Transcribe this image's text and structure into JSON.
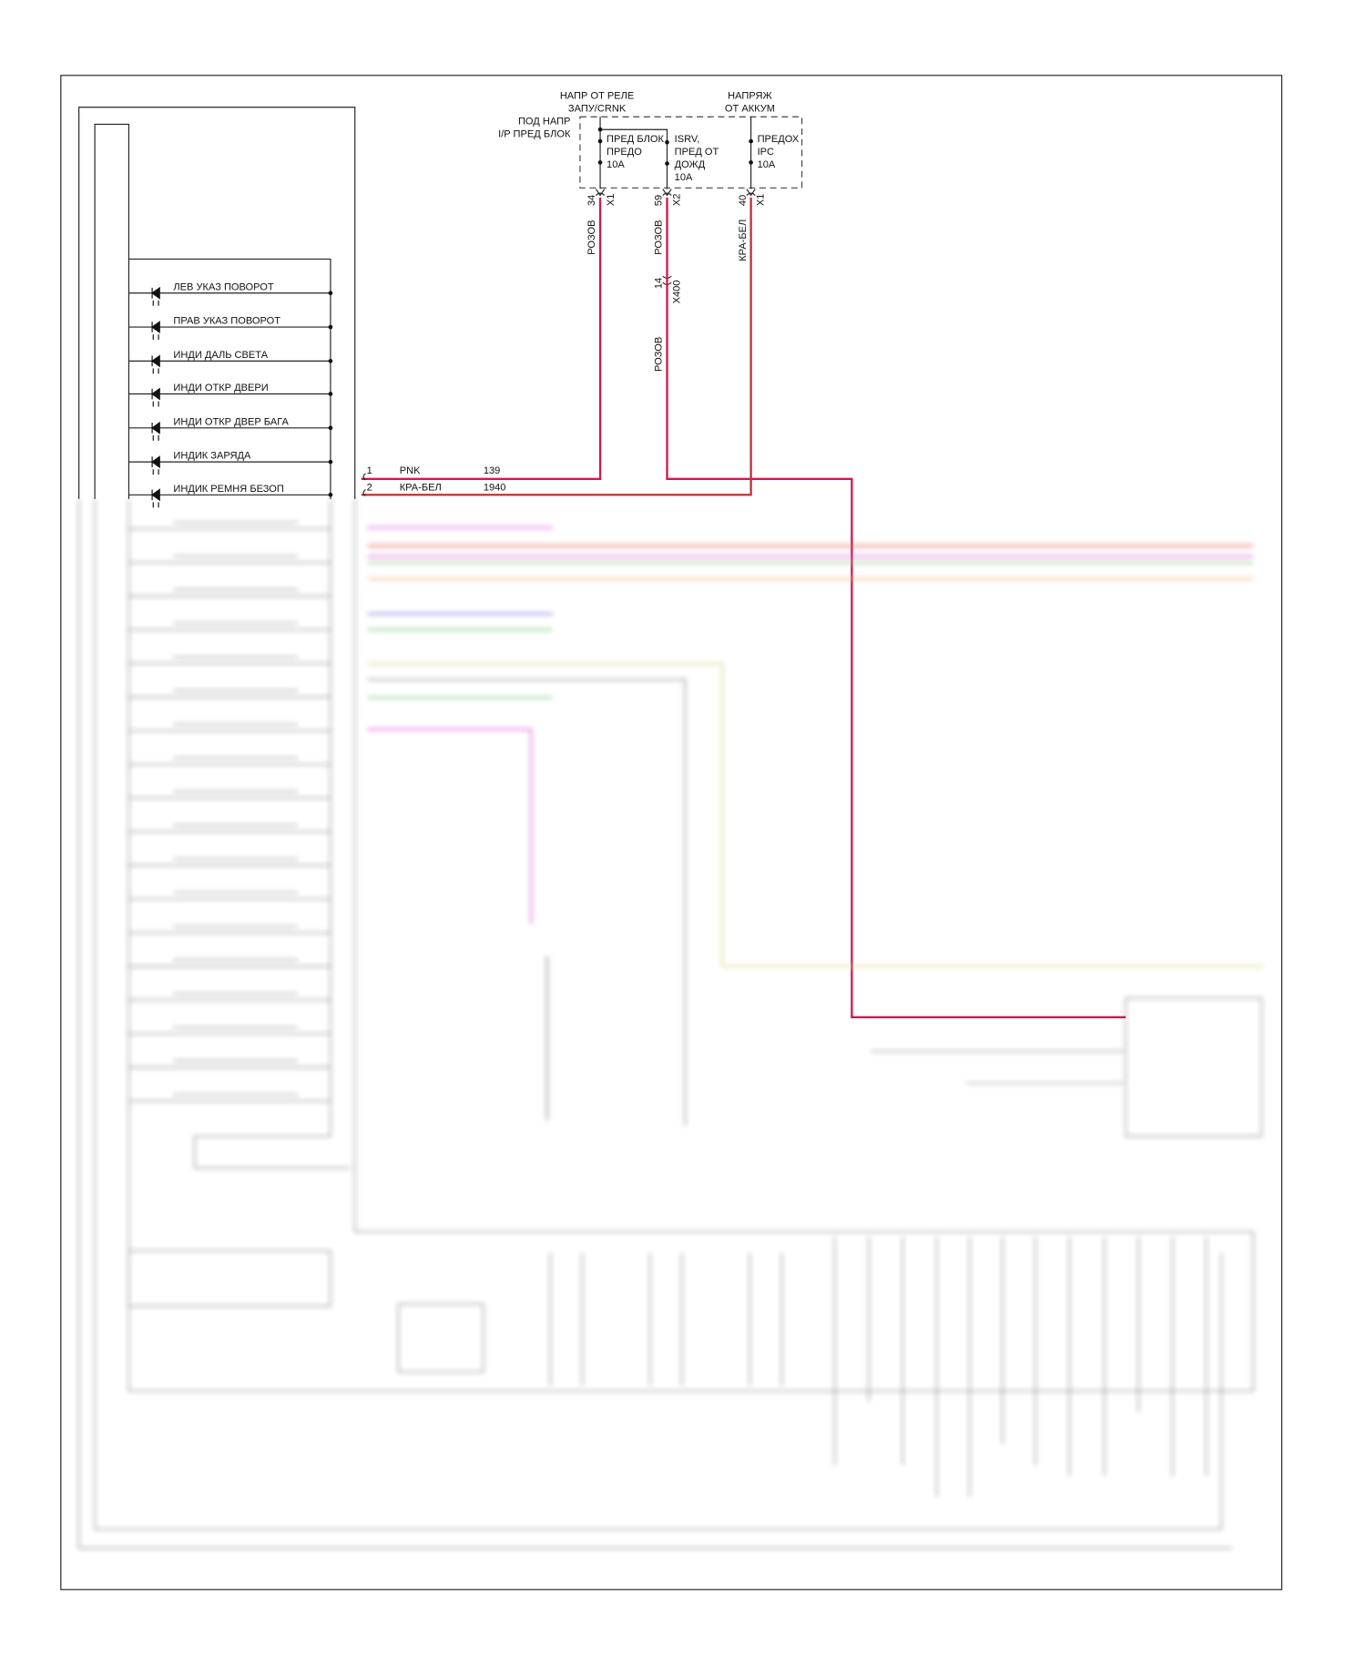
{
  "fuse_block": {
    "label": [
      "ПОД НАПР",
      "I/P ПРЕД БЛОК"
    ],
    "source_crank": [
      "НАПР ОТ РЕЛЕ",
      "ЗАПУ/CRNK"
    ],
    "source_battery": [
      "НАПРЯЖ",
      "ОТ АККУМ"
    ],
    "fuses": [
      {
        "name": [
          "ПРЕД БЛОК",
          "ПРЕДО",
          "10A"
        ],
        "pin": "34",
        "connector": "X1",
        "wire_color": "РОЗОВ"
      },
      {
        "name": [
          "ISRV,",
          "ПРЕД ОТ",
          "ДОЖД",
          "10A"
        ],
        "pin": "59",
        "connector": "X2",
        "wire_color": "РОЗОВ"
      },
      {
        "name": [
          "ПРЕДОХ",
          "IPC",
          "10A"
        ],
        "pin": "40",
        "connector": "X1",
        "wire_color": "КРА-БЕЛ"
      }
    ]
  },
  "inline_connector": {
    "pin": "14",
    "name": "X400",
    "wire_color": "РОЗОВ"
  },
  "indicators": [
    "ЛЕВ УКАЗ ПОВОРОТ",
    "ПРАВ УКАЗ ПОВОРОТ",
    "ИНДИ ДАЛЬ СВЕТА",
    "ИНДИ ОТКР ДВЕРИ",
    "ИНДИ ОТКР ДВЕР БАГА",
    "ИНДИК ЗАРЯДА",
    "ИНДИК РЕМНЯ БЕЗОП"
  ],
  "cluster_pins": [
    {
      "pin": "1",
      "color": "PNK",
      "circuit": "139"
    },
    {
      "pin": "2",
      "color": "КРА-БЕЛ",
      "circuit": "1940"
    }
  ],
  "colors": {
    "pink_wire": "#d0194f",
    "red_white_wire": "#b8343a"
  }
}
